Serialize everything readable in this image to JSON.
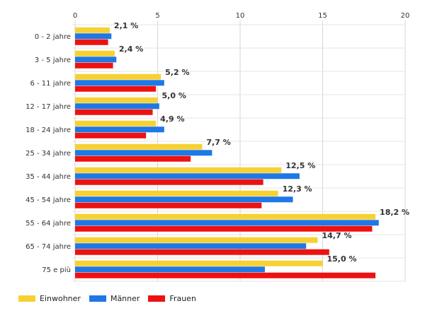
{
  "chart_data": {
    "type": "bar",
    "orientation": "horizontal",
    "categories": [
      "0 - 2 jahre",
      "3 - 5 jahre",
      "6 - 11 jahre",
      "12 - 17 jahre",
      "18 - 24 jahre",
      "25 - 34 jahre",
      "35 - 44 jahre",
      "45 - 54 jahre",
      "55 - 64 jahre",
      "65 - 74 jahre",
      "75 e più"
    ],
    "series": [
      {
        "name": "Einwohner",
        "color": "#f7d133",
        "values": [
          2.1,
          2.4,
          5.2,
          5.0,
          4.9,
          7.7,
          12.5,
          12.3,
          18.2,
          14.7,
          15.0
        ]
      },
      {
        "name": "Männer",
        "color": "#1e78e6",
        "values": [
          2.2,
          2.5,
          5.4,
          5.1,
          5.4,
          8.3,
          13.6,
          13.2,
          18.4,
          14.0,
          11.5
        ]
      },
      {
        "name": "Frauen",
        "color": "#ee1111",
        "values": [
          2.0,
          2.3,
          4.9,
          4.7,
          4.3,
          7.0,
          11.4,
          11.3,
          18.0,
          15.4,
          18.2
        ]
      }
    ],
    "data_labels": [
      "2,1 %",
      "2,4 %",
      "5,2 %",
      "5,0 %",
      "4,9 %",
      "7,7 %",
      "12,5 %",
      "12,3 %",
      "18,2 %",
      "14,7 %",
      "15,0 %"
    ],
    "xlim": [
      0,
      20
    ],
    "xticks": [
      "0",
      "5",
      "10",
      "15",
      "20"
    ],
    "grid": true,
    "legend_position": "bottom-left",
    "title": "",
    "xlabel": "",
    "ylabel": ""
  }
}
